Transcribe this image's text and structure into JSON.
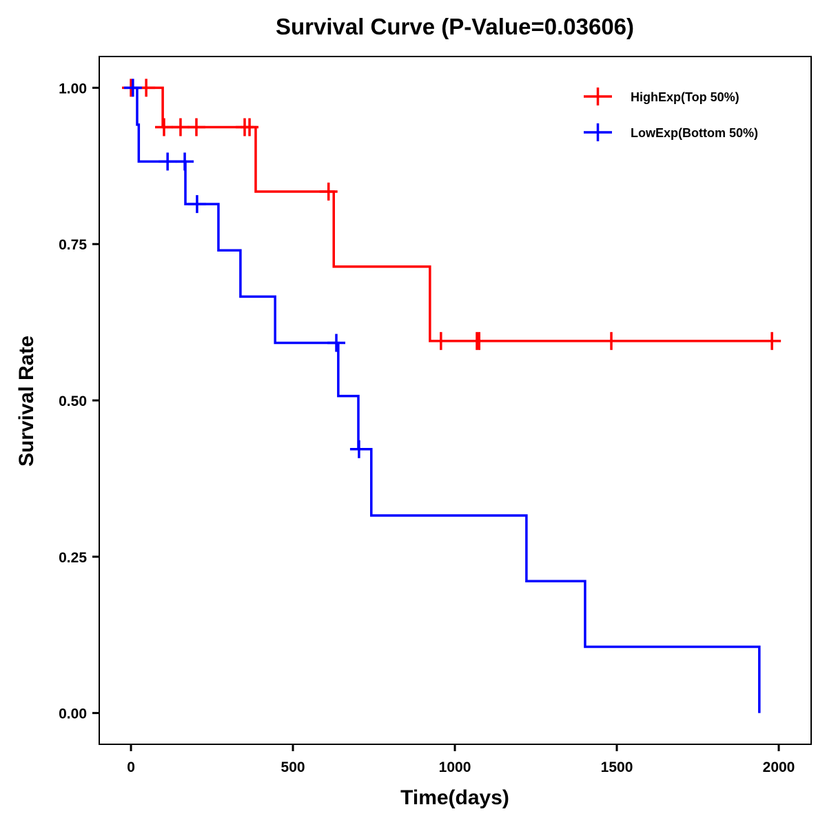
{
  "chart_data": {
    "type": "line",
    "subtype": "kaplan-meier-step",
    "title": "Survival Curve (P-Value=0.03606)",
    "xlabel": "Time(days)",
    "ylabel": "Survival Rate",
    "xlim": [
      -98,
      2100
    ],
    "ylim": [
      -0.05,
      1.05
    ],
    "xticks": [
      0,
      500,
      1000,
      1500,
      2000
    ],
    "xtick_labels": [
      "0",
      "500",
      "1000",
      "1500",
      "2000"
    ],
    "yticks": [
      0,
      0.25,
      0.5,
      0.75,
      1.0
    ],
    "ytick_labels": [
      "0.00",
      "0.25",
      "0.50",
      "0.75",
      "1.00"
    ],
    "grid": false,
    "legend_position": "top-right",
    "series": [
      {
        "name": "HighExp(Top 50%)",
        "color": "#ff0000",
        "steps": [
          {
            "time": 0,
            "survival": 1.0
          },
          {
            "time": 98,
            "survival": 0.937
          },
          {
            "time": 385,
            "survival": 0.834
          },
          {
            "time": 626,
            "survival": 0.714
          },
          {
            "time": 923,
            "survival": 0.595
          }
        ],
        "end_time": 2000,
        "censored": [
          {
            "time": 0,
            "survival": 1.0
          },
          {
            "time": 47,
            "survival": 1.0
          },
          {
            "time": 102,
            "survival": 0.937
          },
          {
            "time": 153,
            "survival": 0.937
          },
          {
            "time": 202,
            "survival": 0.937
          },
          {
            "time": 351,
            "survival": 0.937
          },
          {
            "time": 366,
            "survival": 0.937
          },
          {
            "time": 610,
            "survival": 0.834
          },
          {
            "time": 957,
            "survival": 0.595
          },
          {
            "time": 1068,
            "survival": 0.595
          },
          {
            "time": 1075,
            "survival": 0.595
          },
          {
            "time": 1483,
            "survival": 0.595
          },
          {
            "time": 1979,
            "survival": 0.595
          }
        ]
      },
      {
        "name": "LowExp(Bottom 50%)",
        "color": "#0000ff",
        "steps": [
          {
            "time": 0,
            "survival": 1.0
          },
          {
            "time": 19,
            "survival": 0.941
          },
          {
            "time": 24,
            "survival": 0.882
          },
          {
            "time": 168,
            "survival": 0.814
          },
          {
            "time": 270,
            "survival": 0.74
          },
          {
            "time": 338,
            "survival": 0.666
          },
          {
            "time": 445,
            "survival": 0.592
          },
          {
            "time": 640,
            "survival": 0.507
          },
          {
            "time": 702,
            "survival": 0.422
          },
          {
            "time": 742,
            "survival": 0.316
          },
          {
            "time": 1221,
            "survival": 0.211
          },
          {
            "time": 1402,
            "survival": 0.106
          },
          {
            "time": 1940,
            "survival": 0.0
          }
        ],
        "end_time": 1940,
        "censored": [
          {
            "time": 6,
            "survival": 1.0
          },
          {
            "time": 113,
            "survival": 0.882
          },
          {
            "time": 166,
            "survival": 0.882
          },
          {
            "time": 204,
            "survival": 0.814
          },
          {
            "time": 634,
            "survival": 0.592
          },
          {
            "time": 704,
            "survival": 0.422
          }
        ]
      }
    ]
  }
}
